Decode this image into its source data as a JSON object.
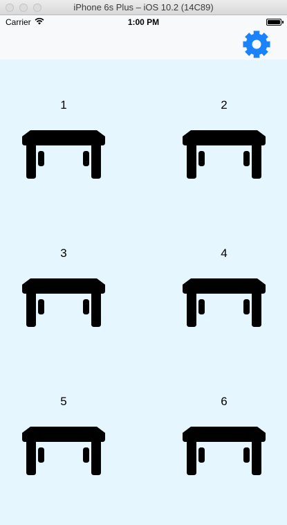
{
  "window": {
    "title": "iPhone 6s Plus – iOS 10.2 (14C89)"
  },
  "status_bar": {
    "carrier": "Carrier",
    "time": "1:00 PM",
    "battery_level": 1.0
  },
  "nav_bar": {
    "settings_icon": "gear-icon",
    "accent_color": "#1a82fb"
  },
  "tables": [
    {
      "number": "1",
      "icon": "table-icon"
    },
    {
      "number": "2",
      "icon": "table-icon"
    },
    {
      "number": "3",
      "icon": "table-icon"
    },
    {
      "number": "4",
      "icon": "table-icon"
    },
    {
      "number": "5",
      "icon": "table-icon"
    },
    {
      "number": "6",
      "icon": "table-icon"
    }
  ],
  "colors": {
    "background": "#e6f6ff",
    "icon": "#000000"
  }
}
